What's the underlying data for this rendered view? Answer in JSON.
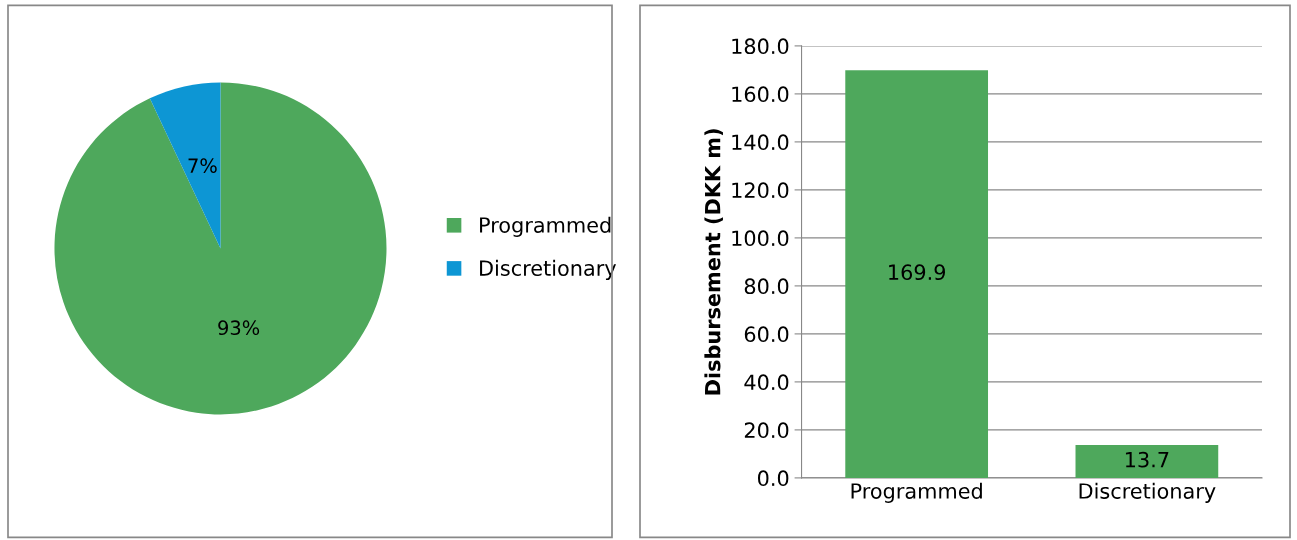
{
  "chart_data": [
    {
      "type": "pie",
      "categories": [
        "Programmed",
        "Discretionary"
      ],
      "values": [
        93,
        7
      ],
      "colors": [
        "#4ea85c",
        "#0d96d4"
      ],
      "value_labels": [
        "93%",
        "7%"
      ],
      "legend": "right"
    },
    {
      "type": "bar",
      "categories": [
        "Programmed",
        "Discretionary"
      ],
      "values": [
        169.9,
        13.7
      ],
      "color": "#4ea85c",
      "ylabel": "Disbursement (DKK m)",
      "ylim": [
        0,
        180
      ],
      "yticks": [
        {
          "value": 0,
          "label": "0.0"
        },
        {
          "value": 20,
          "label": "20.0"
        },
        {
          "value": 40,
          "label": "40.0"
        },
        {
          "value": 60,
          "label": "60.0"
        },
        {
          "value": 80,
          "label": "80.0"
        },
        {
          "value": 100,
          "label": "100.0"
        },
        {
          "value": 120,
          "label": "120.0"
        },
        {
          "value": 140,
          "label": "140.0"
        },
        {
          "value": 160,
          "label": "160.0"
        },
        {
          "value": 180,
          "label": "180.0"
        }
      ],
      "grid": "y",
      "data_labels": true
    }
  ]
}
